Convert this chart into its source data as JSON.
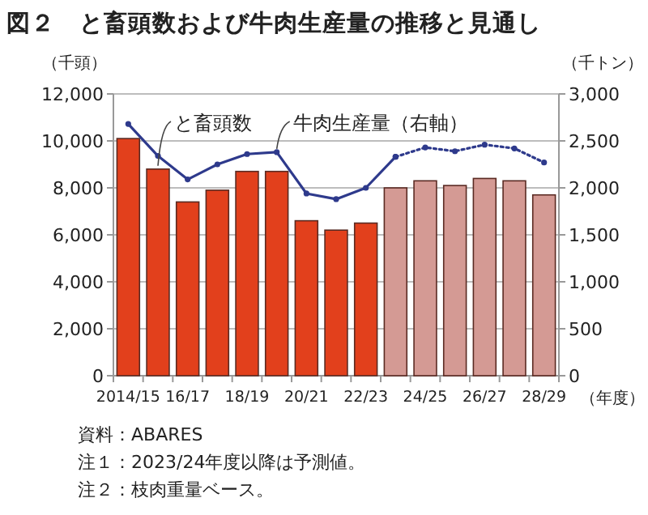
{
  "chart_data": {
    "type": "bar",
    "title": "図２　と畜頭数および牛肉生産量の推移と見通し",
    "ylabel": "（千頭）",
    "y2label": "（千トン）",
    "xlabel": "（年度）",
    "categories": [
      "2014/15",
      null,
      "16/17",
      null,
      "18/19",
      null,
      "20/21",
      null,
      "22/23",
      null,
      "24/25",
      null,
      "26/27",
      null,
      "28/29"
    ],
    "series": [
      {
        "name": "と畜頭数",
        "colors": [
          "#e2401c",
          "#e2401c",
          "#e2401c",
          "#e2401c",
          "#e2401c",
          "#e2401c",
          "#e2401c",
          "#e2401c",
          "#e2401c",
          "#d49a94",
          "#d49a94",
          "#d49a94",
          "#d49a94",
          "#d49a94",
          "#d49a94"
        ],
        "values": [
          10100,
          8800,
          7400,
          7900,
          8700,
          8700,
          6600,
          6200,
          6500,
          8000,
          8300,
          8100,
          8400,
          8300,
          7700
        ]
      },
      {
        "name": "牛肉生産量（右軸）",
        "type": "line",
        "axis": "y2",
        "color": "#2e3a8c",
        "line_style": "solid",
        "marker": "circle",
        "values": [
          2680,
          2340,
          2090,
          2250,
          2360,
          2380,
          1940,
          1880,
          2000,
          2330,
          null,
          null,
          null,
          null,
          null
        ]
      },
      {
        "type": "line",
        "axis": "y2",
        "color": "#2e3a8c",
        "line_style": "dotted",
        "marker": "circle",
        "values": [
          null,
          null,
          null,
          null,
          null,
          null,
          null,
          null,
          null,
          2330,
          2430,
          2390,
          2460,
          2420,
          2270
        ]
      }
    ],
    "ylim": [
      0,
      12000
    ],
    "yticks": [
      0,
      {
        "value": 2000,
        "label": "2,000"
      },
      {
        "value": 4000,
        "label": "4,000"
      },
      {
        "value": 6000,
        "label": "6,000"
      },
      {
        "value": 8000,
        "label": "8,000"
      },
      {
        "value": 10000,
        "label": "10,000"
      },
      {
        "value": 12000,
        "label": "12,000"
      }
    ],
    "y2lim": [
      0,
      3000
    ],
    "y2ticks": [
      0,
      500,
      {
        "value": 1000,
        "label": "1,000"
      },
      {
        "value": 1500,
        "label": "1,500"
      },
      {
        "value": 2000,
        "label": "2,000"
      },
      {
        "value": 2500,
        "label": "2,500"
      },
      {
        "value": 3000,
        "label": "3,000"
      }
    ],
    "grid": "y",
    "annotations": [
      "資料：ABARES",
      "注１：2023/24年度以降は予測値。",
      "注２：枝肉重量ベース。"
    ]
  }
}
